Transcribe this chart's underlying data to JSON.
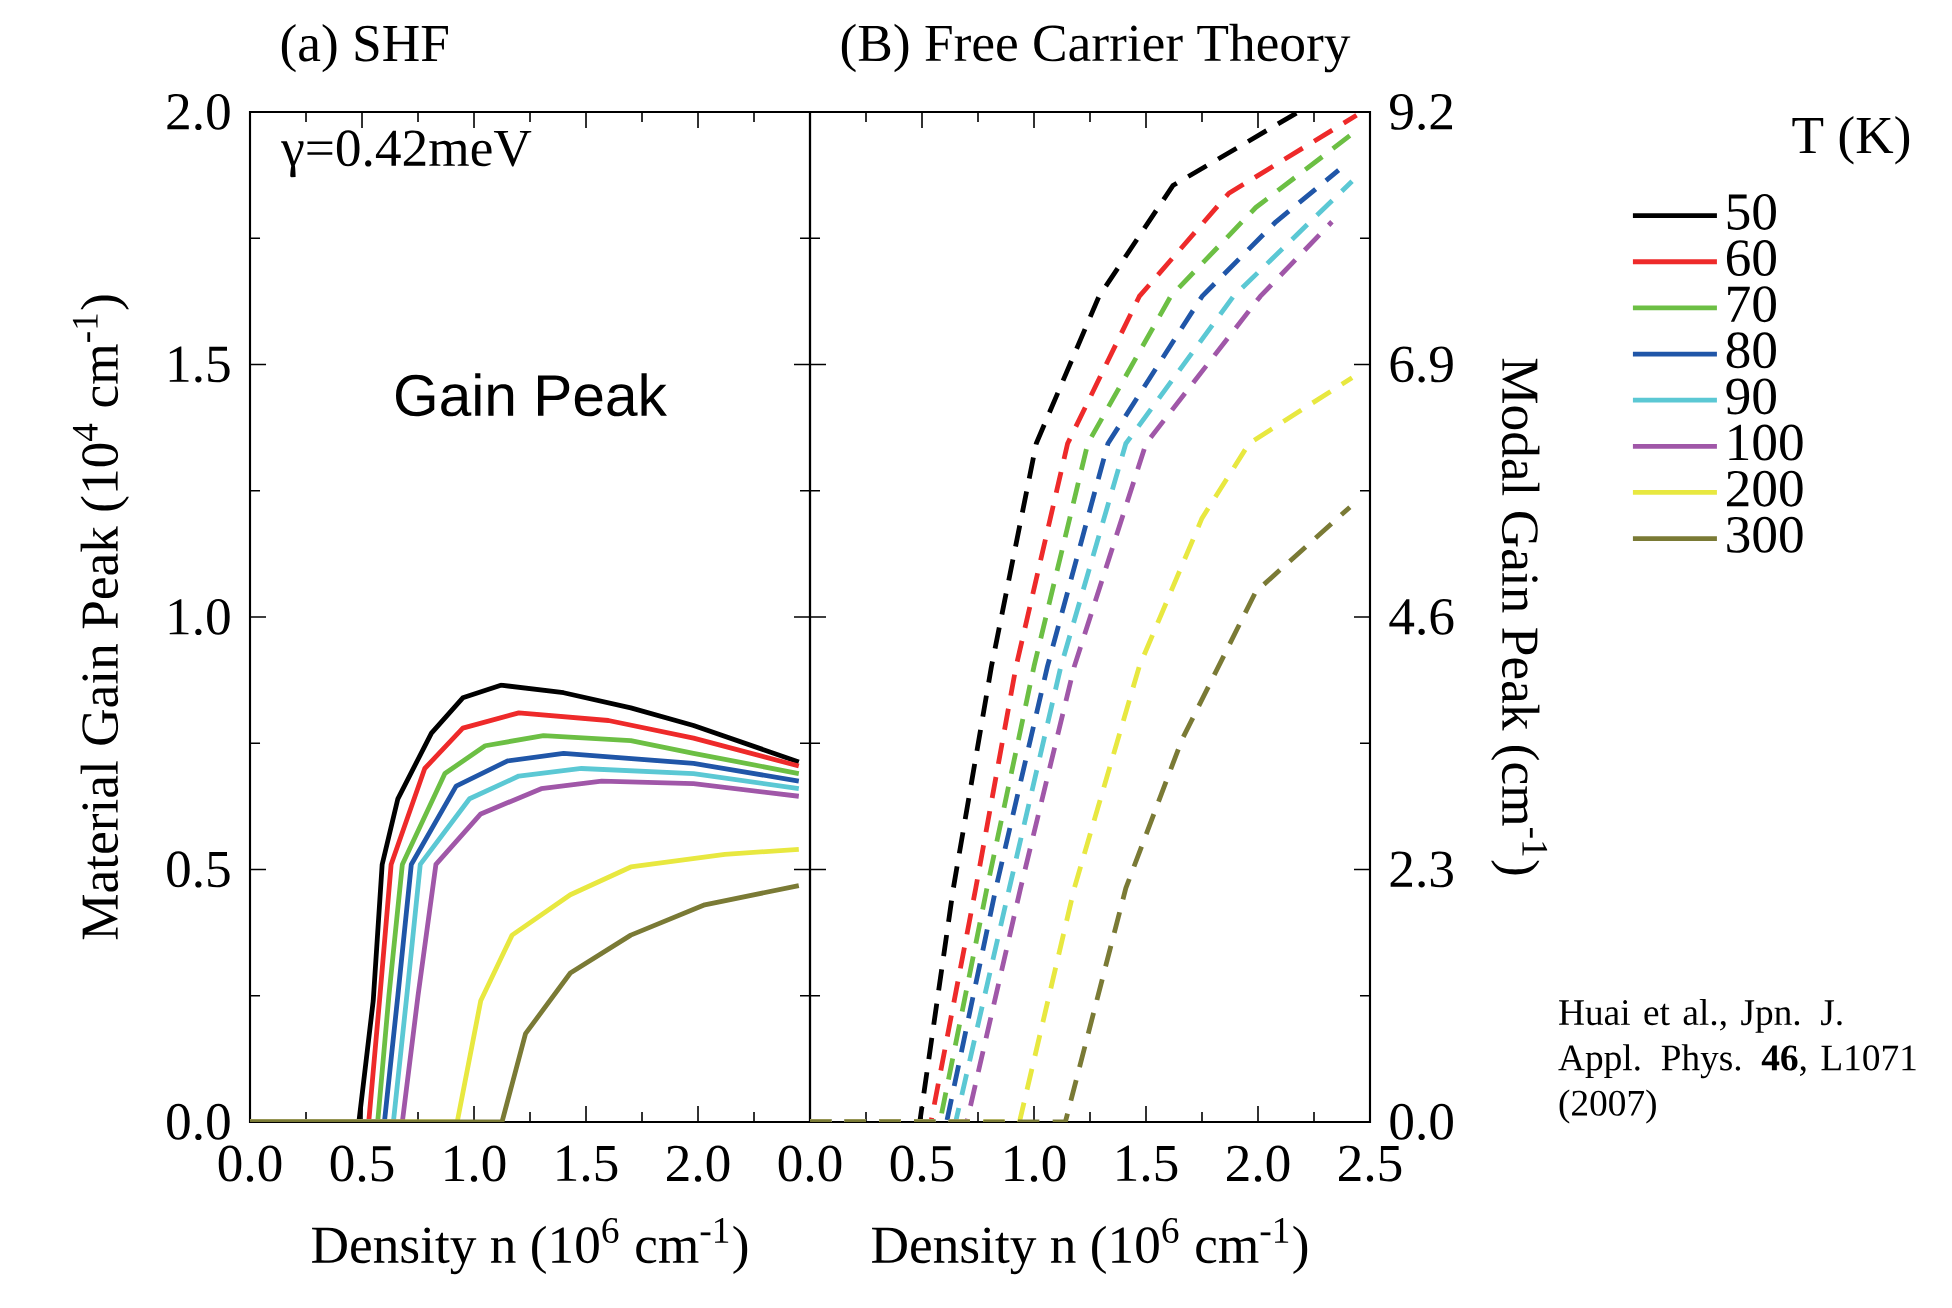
{
  "chart_data": [
    {
      "type": "line",
      "title": "(a) SHF",
      "xlabel": "Density n (10$^{6}$ cm$^{-1}$)",
      "ylabel": "Material Gain Peak (10$^{4}$ cm$^{-1}$)",
      "legend_title": "T (K)",
      "legend": "right",
      "line_style": "solid",
      "xlim": [
        0,
        2.5
      ],
      "ylim": [
        0,
        2.0
      ],
      "xticks": [
        {
          "value": 0,
          "label": "0.0"
        },
        {
          "value": 0.5,
          "label": "0.5"
        },
        {
          "value": 1.0,
          "label": "1.0"
        },
        {
          "value": 1.5,
          "label": "1.5"
        },
        {
          "value": 2.0,
          "label": "2.0"
        },
        {
          "value": 2.5,
          "label": null
        }
      ],
      "yticks": [
        {
          "value": 0,
          "label": "0.0"
        },
        {
          "value": 0.5,
          "label": "0.5"
        },
        {
          "value": 1.0,
          "label": "1.0"
        },
        {
          "value": 1.5,
          "label": "1.5"
        },
        {
          "value": 2.0,
          "label": "2.0"
        }
      ],
      "annotations": [
        "γ=0.42meV",
        "Gain Peak"
      ],
      "series": [
        {
          "name": "50",
          "color": "#000000",
          "x": [
            0,
            0.486,
            0.55,
            0.59,
            0.66,
            0.81,
            0.95,
            1.12,
            1.4,
            1.7,
            1.98,
            2.45
          ],
          "values": [
            0,
            0,
            0.24,
            0.51,
            0.64,
            0.77,
            0.84,
            0.865,
            0.85,
            0.82,
            0.785,
            0.713
          ]
        },
        {
          "name": "60",
          "color": "#ee2a2a",
          "x": [
            0,
            0.53,
            0.58,
            0.63,
            0.78,
            0.95,
            1.2,
            1.6,
            1.98,
            2.45
          ],
          "values": [
            0,
            0,
            0.25,
            0.51,
            0.7,
            0.78,
            0.81,
            0.795,
            0.76,
            0.705
          ]
        },
        {
          "name": "70",
          "color": "#6cbf44",
          "x": [
            0,
            0.57,
            0.62,
            0.68,
            0.87,
            1.05,
            1.31,
            1.7,
            1.98,
            2.45
          ],
          "values": [
            0,
            0,
            0.25,
            0.51,
            0.69,
            0.745,
            0.765,
            0.755,
            0.73,
            0.69
          ]
        },
        {
          "name": "80",
          "color": "#2056a8",
          "x": [
            0,
            0.6,
            0.66,
            0.72,
            0.92,
            1.15,
            1.4,
            1.98,
            2.45
          ],
          "values": [
            0,
            0,
            0.25,
            0.51,
            0.665,
            0.715,
            0.73,
            0.71,
            0.675
          ]
        },
        {
          "name": "90",
          "color": "#5bc8d4",
          "x": [
            0,
            0.64,
            0.7,
            0.76,
            0.98,
            1.2,
            1.48,
            1.98,
            2.45
          ],
          "values": [
            0,
            0,
            0.25,
            0.51,
            0.64,
            0.685,
            0.7,
            0.69,
            0.66
          ]
        },
        {
          "name": "100",
          "color": "#a057a8",
          "x": [
            0,
            0.68,
            0.75,
            0.83,
            1.03,
            1.3,
            1.57,
            1.98,
            2.45
          ],
          "values": [
            0,
            0,
            0.25,
            0.51,
            0.61,
            0.66,
            0.675,
            0.67,
            0.645
          ]
        },
        {
          "name": "200",
          "color": "#e8e840",
          "x": [
            0,
            0.925,
            1.03,
            1.17,
            1.43,
            1.7,
            2.12,
            2.45
          ],
          "values": [
            0,
            0,
            0.24,
            0.37,
            0.45,
            0.505,
            0.53,
            0.54
          ]
        },
        {
          "name": "300",
          "color": "#7a7a35",
          "x": [
            0,
            1.125,
            1.23,
            1.43,
            1.7,
            2.03,
            2.45
          ],
          "values": [
            0,
            0,
            0.175,
            0.295,
            0.37,
            0.43,
            0.468
          ]
        }
      ]
    },
    {
      "type": "line",
      "title": "(B) Free Carrier Theory",
      "xlabel": "Density n (10$^{6}$ cm$^{-1}$)",
      "ylabel": "Modal Gain Peak (cm$^{-1}$)",
      "line_style": "dashed",
      "xlim": [
        0,
        2.5
      ],
      "ylim": [
        0,
        9.2
      ],
      "xticks": [
        {
          "value": 0,
          "label": "0.0"
        },
        {
          "value": 0.5,
          "label": "0.5"
        },
        {
          "value": 1.0,
          "label": "1.0"
        },
        {
          "value": 1.5,
          "label": "1.5"
        },
        {
          "value": 2.0,
          "label": "2.0"
        },
        {
          "value": 2.5,
          "label": "2.5"
        }
      ],
      "yticks": [
        {
          "value": 0,
          "label": "0.0"
        },
        2.3,
        4.6,
        6.9,
        9.2
      ],
      "annotations": [
        "Huai et al., Jpn. J. Appl. Phys. **46**, L1071 (2007)"
      ],
      "series": [
        {
          "color": "#000000",
          "x": [
            0,
            0.49,
            0.64,
            0.81,
            1.01,
            1.29,
            1.62,
            2.18
          ],
          "values": [
            0,
            0,
            2.13,
            4.15,
            6.18,
            7.52,
            8.53,
            9.2
          ]
        },
        {
          "color": "#ee2a2a",
          "x": [
            0,
            0.54,
            0.74,
            0.92,
            1.15,
            1.47,
            1.87,
            2.44
          ],
          "values": [
            0,
            0,
            2.13,
            4.15,
            6.18,
            7.52,
            8.46,
            9.17
          ]
        },
        {
          "color": "#6cbf44",
          "x": [
            0,
            0.58,
            0.79,
            1.0,
            1.24,
            1.61,
            1.99,
            2.42
          ],
          "values": [
            0,
            0,
            2.13,
            4.15,
            6.18,
            7.52,
            8.33,
            9.0
          ]
        },
        {
          "color": "#2056a8",
          "x": [
            0,
            0.61,
            0.83,
            1.06,
            1.33,
            1.75,
            2.08,
            2.36
          ],
          "values": [
            0,
            0,
            2.13,
            4.15,
            6.18,
            7.52,
            8.2,
            8.67
          ]
        },
        {
          "color": "#5bc8d4",
          "x": [
            0,
            0.65,
            0.89,
            1.12,
            1.41,
            1.89,
            2.42
          ],
          "values": [
            0,
            0,
            2.13,
            4.15,
            6.18,
            7.52,
            8.57
          ]
        },
        {
          "color": "#a057a8",
          "x": [
            0,
            0.7,
            0.94,
            1.18,
            1.5,
            2.01,
            2.33
          ],
          "values": [
            0,
            0,
            2.13,
            4.15,
            6.18,
            7.52,
            8.2
          ]
        },
        {
          "color": "#e8e840",
          "x": [
            0,
            0.935,
            1.18,
            1.47,
            1.75,
            1.96,
            2.42
          ],
          "values": [
            0,
            0,
            2.13,
            4.15,
            5.5,
            6.18,
            6.78
          ]
        },
        {
          "color": "#7a7a35",
          "x": [
            0,
            1.14,
            1.41,
            1.66,
            1.99,
            2.41
          ],
          "values": [
            0,
            0,
            2.13,
            3.48,
            4.83,
            5.6
          ]
        }
      ]
    }
  ]
}
